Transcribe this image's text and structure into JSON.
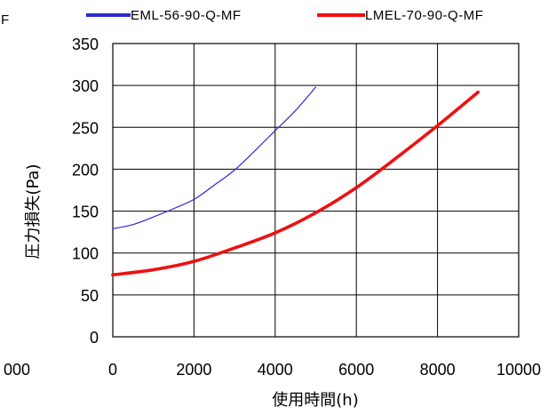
{
  "chart_data": {
    "type": "line",
    "title": "",
    "xlabel": "使用時間(h)",
    "ylabel": "圧力損失(Pa)",
    "xlim": [
      0,
      10000
    ],
    "ylim": [
      0,
      350
    ],
    "x_ticks": [
      "0",
      "2000",
      "4000",
      "6000",
      "8000",
      "10000"
    ],
    "y_ticks": [
      "0",
      "50",
      "100",
      "150",
      "200",
      "250",
      "300",
      "350"
    ],
    "grid": true,
    "legend_position": "top",
    "left_clipped_labels": {
      "tick": "000",
      "legend_fragment": "F"
    },
    "series": [
      {
        "name": "EML-56-90-Q-MF",
        "color": "#2a2ad0",
        "x": [
          0,
          500,
          1000,
          1500,
          2000,
          2500,
          3000,
          3500,
          4000,
          4500,
          5000
        ],
        "y": [
          129,
          134,
          143,
          153,
          164,
          181,
          199,
          222,
          246,
          270,
          298
        ]
      },
      {
        "name": "LMEL-70-90-Q-MF",
        "color": "#ee1111",
        "x": [
          0,
          1000,
          2000,
          3000,
          4000,
          5000,
          6000,
          7000,
          8000,
          9000
        ],
        "y": [
          74,
          80,
          90,
          106,
          124,
          148,
          178,
          214,
          252,
          292
        ]
      }
    ]
  }
}
